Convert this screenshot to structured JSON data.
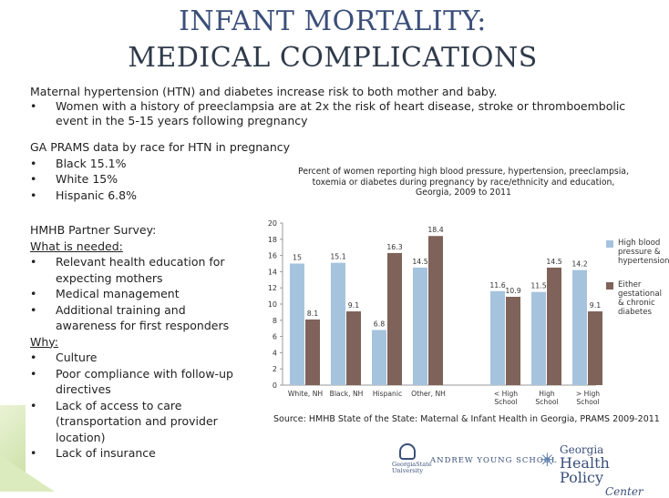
{
  "title": {
    "line1": "INFANT MORTALITY:",
    "line2": "MEDICAL COMPLICATIONS"
  },
  "intro": {
    "line1": "Maternal hypertension (HTN) and diabetes increase risk to both mother and baby.",
    "bullet1": "Women with a history of preeclampsia are at 2x the risk of heart disease, stroke or thromboembolic event in the 5-15 years following pregnancy"
  },
  "prams": {
    "heading": "GA PRAMS data by race for HTN in pregnancy",
    "items": [
      "Black 15.1%",
      "White 15%",
      "Hispanic 6.8%"
    ]
  },
  "survey": {
    "heading": "HMHB Partner Survey:",
    "needed_label": "What is needed:",
    "needed": [
      "Relevant health education for expecting mothers",
      "Medical management",
      "Additional training and awareness for first responders"
    ],
    "why_label": "Why:",
    "why": [
      "Culture",
      "Poor compliance with follow-up directives",
      "Lack of access to care (transportation and provider location)",
      "Lack of insurance"
    ]
  },
  "chart_data": {
    "type": "bar",
    "title": "Percent of women reporting high blood pressure, hypertension, preeclampsia, toxemia or diabetes during pregnancy by race/ethnicity and education, Georgia, 2009 to 2011",
    "categories": [
      "White, NH",
      "Black, NH",
      "Hispanic",
      "Other, NH",
      "< High School",
      "High School",
      "> High School"
    ],
    "category_groups": [
      [
        "White, NH",
        "Black, NH",
        "Hispanic",
        "Other, NH"
      ],
      [
        "< High School",
        "High School",
        "> High School"
      ]
    ],
    "series": [
      {
        "name": "High blood pressure & hypertension",
        "color": "#a6c3de",
        "values": [
          15,
          15.1,
          6.8,
          14.5,
          11.6,
          11.5,
          14.2
        ]
      },
      {
        "name": "Either gestational & chronic diabetes",
        "color": "#7f6259",
        "values": [
          8.1,
          9.1,
          16.3,
          18.4,
          10.9,
          14.5,
          9.1
        ]
      }
    ],
    "ylim": [
      0,
      20
    ],
    "yticks": [
      0,
      2,
      4,
      6,
      8,
      10,
      12,
      14,
      16,
      18,
      20
    ],
    "legend_position": "right",
    "grid": false
  },
  "source": "Source: HMHB State of the State: Maternal & Infant Health in Georgia, PRAMS 2009-2011",
  "logos": {
    "gsu": "GeorgiaState University",
    "ays": "ANDREW YOUNG SCHOOL",
    "ghpc_line1": "Georgia",
    "ghpc_line2": "Health Policy",
    "ghpc_line3": "Center"
  },
  "colors": {
    "title": "#3b4f7a",
    "accent_green": "#c9dea0"
  }
}
